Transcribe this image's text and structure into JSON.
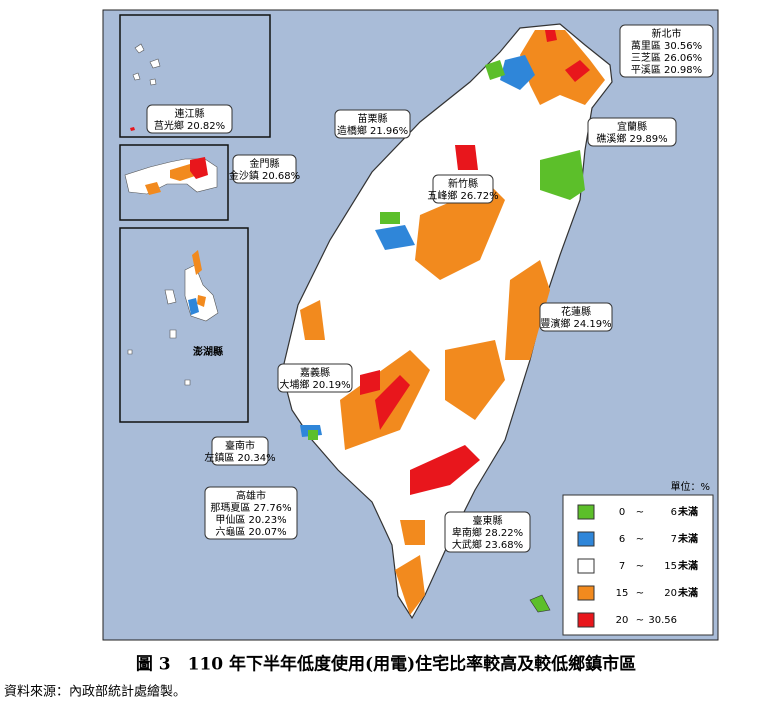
{
  "map": {
    "unit": "單位：%",
    "legend": {
      "separator": "~",
      "items": [
        {
          "from": "0",
          "to": "6",
          "note": "未滿",
          "color": "#5cbf2a"
        },
        {
          "from": "6",
          "to": "7",
          "note": "未滿",
          "color": "#2f86d9"
        },
        {
          "from": "7",
          "to": "15",
          "note": "未滿",
          "color": "#ffffff"
        },
        {
          "from": "15",
          "to": "20",
          "note": "未滿",
          "color": "#f28a1e"
        },
        {
          "from": "20",
          "to": "30.56",
          "color": "#e8161c"
        }
      ]
    },
    "callouts": [
      {
        "title": "新北市",
        "lines": [
          "萬里區 30.56%",
          "三芝區 26.06%",
          "平溪區 20.98%"
        ]
      },
      {
        "title": "宜蘭縣",
        "lines": [
          "礁溪鄉 29.89%"
        ]
      },
      {
        "title": "苗栗縣",
        "lines": [
          "造橋鄉 21.96%"
        ]
      },
      {
        "title": "新竹縣",
        "lines": [
          "五峰鄉 26.72%"
        ]
      },
      {
        "title": "連江縣",
        "lines": [
          "莒光鄉 20.82%"
        ]
      },
      {
        "title": "金門縣",
        "lines": [
          "金沙鎮 20.68%"
        ]
      },
      {
        "title": "花蓮縣",
        "lines": [
          "豐濱鄉 24.19%"
        ]
      },
      {
        "title": "嘉義縣",
        "lines": [
          "大埔鄉 20.19%"
        ]
      },
      {
        "title": "臺南市",
        "lines": [
          "左鎮區 20.34%"
        ]
      },
      {
        "title": "高雄市",
        "lines": [
          "那瑪夏區 27.76%",
          "甲仙區 20.23%",
          "六龜區 20.07%"
        ]
      },
      {
        "title": "臺東縣",
        "lines": [
          "卑南鄉 28.22%",
          "大武鄉 23.68%"
        ]
      }
    ],
    "penghu_label": "澎湖縣",
    "caption": "圖 3　110 年下半年低度使用(用電)住宅比率較高及較低鄉鎮市區",
    "source": "資料來源：內政部統計處繪製。"
  }
}
